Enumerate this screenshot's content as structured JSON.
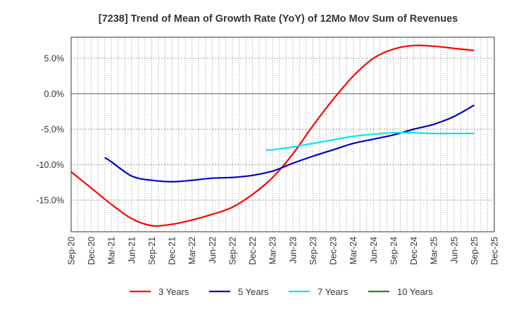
{
  "chart_data": {
    "type": "line",
    "title": "[7238]  Trend of Mean of Growth Rate (YoY) of 12Mo Mov Sum of Revenues",
    "xlabel": "",
    "ylabel": "",
    "grid": true,
    "legend_position": "bottom",
    "ylim": [
      -19.5,
      8.0
    ],
    "yticks": [
      5.0,
      0.0,
      -5.0,
      -10.0,
      -15.0
    ],
    "ytick_labels": [
      "5.0%",
      "0.0%",
      "-5.0%",
      "-10.0%",
      "-15.0%"
    ],
    "x_categories": [
      "Sep-20",
      "Dec-20",
      "Mar-21",
      "Jun-21",
      "Sep-21",
      "Dec-21",
      "Mar-22",
      "Jun-22",
      "Sep-22",
      "Dec-22",
      "Mar-23",
      "Jun-23",
      "Sep-23",
      "Dec-23",
      "Mar-24",
      "Jun-24",
      "Sep-24",
      "Dec-24",
      "Mar-25",
      "Jun-25",
      "Sep-25",
      "Dec-25"
    ],
    "x_unit": "months since Sep-20",
    "series": [
      {
        "name": "3 Years",
        "color": "#ff0000",
        "x": [
          0,
          3,
          6,
          9,
          12,
          15,
          18,
          21,
          24,
          27,
          30,
          33,
          36,
          39,
          42,
          45,
          48,
          51,
          54,
          57,
          60
        ],
        "values": [
          -11.0,
          -13.3,
          -15.6,
          -17.6,
          -18.6,
          -18.4,
          -17.8,
          -17.0,
          -16.0,
          -14.2,
          -11.8,
          -8.5,
          -4.5,
          -0.8,
          2.5,
          5.0,
          6.3,
          6.8,
          6.7,
          6.4,
          6.1
        ]
      },
      {
        "name": "5 Years",
        "color": "#0000cc",
        "x": [
          5,
          6,
          9,
          12,
          15,
          18,
          21,
          24,
          27,
          30,
          33,
          36,
          39,
          42,
          45,
          48,
          51,
          54,
          57,
          60
        ],
        "values": [
          -9.0,
          -9.6,
          -11.6,
          -12.2,
          -12.4,
          -12.2,
          -11.9,
          -11.8,
          -11.5,
          -10.9,
          -9.8,
          -8.8,
          -7.9,
          -7.0,
          -6.4,
          -5.8,
          -5.0,
          -4.3,
          -3.2,
          -1.6
        ]
      },
      {
        "name": "7 Years",
        "color": "#00e5ee",
        "x": [
          29,
          30,
          33,
          36,
          39,
          42,
          45,
          48,
          51,
          54,
          57,
          60
        ],
        "values": [
          -7.9,
          -7.9,
          -7.5,
          -7.0,
          -6.5,
          -6.0,
          -5.7,
          -5.5,
          -5.5,
          -5.6,
          -5.6,
          -5.6
        ]
      },
      {
        "name": "10 Years",
        "color": "#228b22",
        "x": [],
        "values": []
      }
    ]
  }
}
